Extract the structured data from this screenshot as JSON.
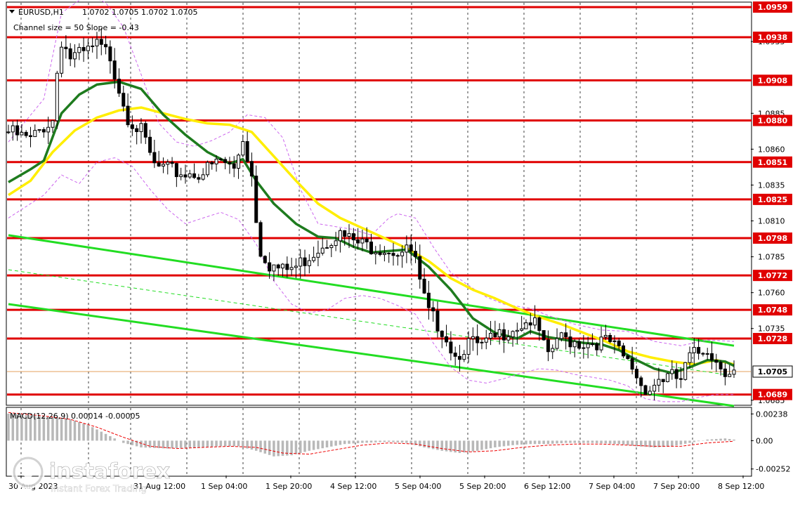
{
  "chart_data": {
    "type": "candlestick",
    "symbol": "EURUSD,H1",
    "ohlc_label": "1.0702 1.0705 1.0702 1.0705",
    "channel_label": "Channel size = 50 Slope = -0.43",
    "ylim": [
      1.0682,
      1.0962
    ],
    "price_ticks": [
      "1.0935",
      "1.0885",
      "1.0860",
      "1.0835",
      "1.0810",
      "1.0785",
      "1.0760",
      "1.0735",
      "1.0685"
    ],
    "price_tick_values": [
      1.0935,
      1.0885,
      1.086,
      1.0835,
      1.081,
      1.0785,
      1.076,
      1.0735,
      1.0685
    ],
    "horizontal_levels": [
      {
        "label": "1.0959",
        "value": 1.0959
      },
      {
        "label": "1.0938",
        "value": 1.0938
      },
      {
        "label": "1.0908",
        "value": 1.0908
      },
      {
        "label": "1.0880",
        "value": 1.088
      },
      {
        "label": "1.0851",
        "value": 1.0851
      },
      {
        "label": "1.0825",
        "value": 1.0825
      },
      {
        "label": "1.0798",
        "value": 1.0798
      },
      {
        "label": "1.0772",
        "value": 1.0772
      },
      {
        "label": "1.0748",
        "value": 1.0748
      },
      {
        "label": "1.0728",
        "value": 1.0728
      },
      {
        "label": "1.0689",
        "value": 1.0689
      }
    ],
    "current_price": {
      "label": "1.0705",
      "value": 1.0705
    },
    "time_labels": [
      "30 Aug 2023",
      "31 Aug 12:00",
      "1 Sep 04:00",
      "1 Sep 20:00",
      "4 Sep 12:00",
      "5 Sep 04:00",
      "5 Sep 20:00",
      "6 Sep 12:00",
      "7 Sep 04:00",
      "7 Sep 20:00",
      "8 Sep 12:00"
    ],
    "bars_total": 165,
    "close_path": [
      [
        0,
        1.0872
      ],
      [
        5,
        1.0866
      ],
      [
        8,
        1.0876
      ],
      [
        10,
        1.088
      ],
      [
        11,
        1.0914
      ],
      [
        12,
        1.0936
      ],
      [
        14,
        1.0924
      ],
      [
        17,
        1.0926
      ],
      [
        20,
        1.0932
      ],
      [
        23,
        1.0925
      ],
      [
        25,
        1.0903
      ],
      [
        27,
        1.0883
      ],
      [
        30,
        1.0872
      ],
      [
        33,
        1.0848
      ],
      [
        36,
        1.0845
      ],
      [
        40,
        1.0843
      ],
      [
        44,
        1.0844
      ],
      [
        48,
        1.0852
      ],
      [
        51,
        1.0846
      ],
      [
        53,
        1.0868
      ],
      [
        55,
        1.0842
      ],
      [
        56,
        1.0812
      ],
      [
        57,
        1.079
      ],
      [
        59,
        1.078
      ],
      [
        62,
        1.0775
      ],
      [
        65,
        1.0778
      ],
      [
        68,
        1.0786
      ],
      [
        71,
        1.0794
      ],
      [
        74,
        1.0801
      ],
      [
        77,
        1.0797
      ],
      [
        80,
        1.0793
      ],
      [
        84,
        1.0792
      ],
      [
        88,
        1.0789
      ],
      [
        91,
        1.0788
      ],
      [
        92,
        1.0782
      ],
      [
        93,
        1.0765
      ],
      [
        95,
        1.0745
      ],
      [
        98,
        1.0735
      ],
      [
        101,
        1.0716
      ],
      [
        104,
        1.0725
      ],
      [
        107,
        1.0722
      ],
      [
        110,
        1.0728
      ],
      [
        113,
        1.0735
      ],
      [
        116,
        1.0738
      ],
      [
        118,
        1.0741
      ],
      [
        120,
        1.0732
      ],
      [
        122,
        1.0713
      ],
      [
        124,
        1.0728
      ],
      [
        127,
        1.0727
      ],
      [
        130,
        1.0725
      ],
      [
        133,
        1.0726
      ],
      [
        136,
        1.0725
      ],
      [
        138,
        1.0718
      ],
      [
        141,
        1.0708
      ],
      [
        143,
        1.0696
      ],
      [
        145,
        1.0693
      ],
      [
        147,
        1.07
      ],
      [
        150,
        1.0701
      ],
      [
        152,
        1.0699
      ],
      [
        154,
        1.0715
      ],
      [
        156,
        1.0718
      ],
      [
        158,
        1.0722
      ],
      [
        160,
        1.0712
      ],
      [
        162,
        1.0707
      ],
      [
        164,
        1.0705
      ]
    ],
    "ma_slow_yellow": [
      [
        0,
        1.0828
      ],
      [
        5,
        1.0838
      ],
      [
        10,
        1.0858
      ],
      [
        15,
        1.0873
      ],
      [
        20,
        1.0882
      ],
      [
        25,
        1.0887
      ],
      [
        30,
        1.0889
      ],
      [
        35,
        1.0885
      ],
      [
        40,
        1.0881
      ],
      [
        45,
        1.0878
      ],
      [
        50,
        1.0877
      ],
      [
        55,
        1.0872
      ],
      [
        60,
        1.0855
      ],
      [
        65,
        1.0838
      ],
      [
        70,
        1.0822
      ],
      [
        75,
        1.0812
      ],
      [
        80,
        1.0805
      ],
      [
        85,
        1.0798
      ],
      [
        90,
        1.0791
      ],
      [
        95,
        1.0782
      ],
      [
        100,
        1.077
      ],
      [
        105,
        1.0762
      ],
      [
        110,
        1.0756
      ],
      [
        115,
        1.0749
      ],
      [
        120,
        1.0743
      ],
      [
        125,
        1.0738
      ],
      [
        130,
        1.0732
      ],
      [
        135,
        1.0726
      ],
      [
        140,
        1.0719
      ],
      [
        145,
        1.0715
      ],
      [
        150,
        1.0712
      ],
      [
        155,
        1.071
      ],
      [
        160,
        1.0713
      ],
      [
        164,
        1.071
      ]
    ],
    "ma_fast_green": [
      [
        0,
        1.0837
      ],
      [
        5,
        1.0846
      ],
      [
        8,
        1.0852
      ],
      [
        12,
        1.0885
      ],
      [
        16,
        1.0898
      ],
      [
        20,
        1.0905
      ],
      [
        25,
        1.0907
      ],
      [
        30,
        1.0902
      ],
      [
        35,
        1.0884
      ],
      [
        40,
        1.087
      ],
      [
        45,
        1.0858
      ],
      [
        50,
        1.085
      ],
      [
        53,
        1.0853
      ],
      [
        56,
        1.0838
      ],
      [
        60,
        1.0822
      ],
      [
        65,
        1.0808
      ],
      [
        70,
        1.0799
      ],
      [
        74,
        1.0798
      ],
      [
        78,
        1.0792
      ],
      [
        82,
        1.0788
      ],
      [
        86,
        1.0789
      ],
      [
        90,
        1.079
      ],
      [
        95,
        1.0778
      ],
      [
        100,
        1.0762
      ],
      [
        105,
        1.0742
      ],
      [
        110,
        1.0732
      ],
      [
        115,
        1.0728
      ],
      [
        118,
        1.0733
      ],
      [
        122,
        1.0729
      ],
      [
        126,
        1.0727
      ],
      [
        130,
        1.0725
      ],
      [
        134,
        1.0724
      ],
      [
        138,
        1.072
      ],
      [
        142,
        1.0713
      ],
      [
        146,
        1.0707
      ],
      [
        150,
        1.0704
      ],
      [
        154,
        1.0708
      ],
      [
        158,
        1.0713
      ],
      [
        162,
        1.0712
      ],
      [
        164,
        1.0709
      ]
    ],
    "bollinger_upper": [
      [
        0,
        1.0865
      ],
      [
        8,
        1.0895
      ],
      [
        12,
        1.0955
      ],
      [
        18,
        1.0968
      ],
      [
        22,
        1.0962
      ],
      [
        26,
        1.0945
      ],
      [
        30,
        1.0912
      ],
      [
        34,
        1.0878
      ],
      [
        38,
        1.0865
      ],
      [
        42,
        1.0862
      ],
      [
        46,
        1.0866
      ],
      [
        50,
        1.0872
      ],
      [
        54,
        1.0884
      ],
      [
        58,
        1.0882
      ],
      [
        62,
        1.0868
      ],
      [
        66,
        1.0832
      ],
      [
        70,
        1.0808
      ],
      [
        74,
        1.0806
      ],
      [
        78,
        1.0804
      ],
      [
        82,
        1.08
      ],
      [
        86,
        1.0812
      ],
      [
        88,
        1.0815
      ],
      [
        92,
        1.0812
      ],
      [
        96,
        1.0792
      ],
      [
        100,
        1.0774
      ],
      [
        104,
        1.0765
      ],
      [
        108,
        1.0757
      ],
      [
        112,
        1.0752
      ],
      [
        118,
        1.0749
      ],
      [
        122,
        1.0744
      ],
      [
        128,
        1.0738
      ],
      [
        134,
        1.0734
      ],
      [
        140,
        1.0733
      ],
      [
        146,
        1.0726
      ],
      [
        152,
        1.0723
      ],
      [
        158,
        1.0727
      ],
      [
        164,
        1.0726
      ]
    ],
    "bollinger_lower": [
      [
        0,
        1.0812
      ],
      [
        8,
        1.0828
      ],
      [
        12,
        1.0842
      ],
      [
        16,
        1.0836
      ],
      [
        20,
        1.0851
      ],
      [
        24,
        1.0854
      ],
      [
        28,
        1.0848
      ],
      [
        32,
        1.0832
      ],
      [
        36,
        1.0818
      ],
      [
        40,
        1.0808
      ],
      [
        44,
        1.0812
      ],
      [
        48,
        1.0816
      ],
      [
        52,
        1.0811
      ],
      [
        56,
        1.0794
      ],
      [
        60,
        1.0768
      ],
      [
        64,
        1.0752
      ],
      [
        68,
        1.0746
      ],
      [
        72,
        1.0748
      ],
      [
        76,
        1.0756
      ],
      [
        80,
        1.0758
      ],
      [
        84,
        1.0756
      ],
      [
        88,
        1.0751
      ],
      [
        92,
        1.0745
      ],
      [
        96,
        1.0725
      ],
      [
        100,
        1.0708
      ],
      [
        104,
        1.0699
      ],
      [
        108,
        1.0697
      ],
      [
        112,
        1.07
      ],
      [
        116,
        1.0704
      ],
      [
        120,
        1.0707
      ],
      [
        124,
        1.0706
      ],
      [
        128,
        1.0703
      ],
      [
        132,
        1.0701
      ],
      [
        136,
        1.0699
      ],
      [
        140,
        1.0695
      ],
      [
        144,
        1.0686
      ],
      [
        148,
        1.0684
      ],
      [
        152,
        1.0684
      ],
      [
        156,
        1.0687
      ],
      [
        160,
        1.0689
      ],
      [
        164,
        1.0689
      ]
    ],
    "channel_upper_line": [
      [
        0,
        1.08
      ],
      [
        164,
        1.0723
      ]
    ],
    "channel_lower_line": [
      [
        0,
        1.0752
      ],
      [
        164,
        1.0681
      ]
    ],
    "channel_mid_line": [
      [
        0,
        1.0776
      ],
      [
        164,
        1.0702
      ]
    ],
    "macd": {
      "label": "MACD(12,26,9) 0.00014 -0.00005",
      "ylim": [
        -0.0031,
        0.0029
      ],
      "ticks": [
        "0.00238",
        "0.00",
        "-0.00252"
      ],
      "tick_values": [
        0.00238,
        0.0,
        -0.00252
      ],
      "histogram": [
        [
          0,
          0.0024
        ],
        [
          6,
          0.0022
        ],
        [
          10,
          0.0021
        ],
        [
          14,
          0.0019
        ],
        [
          18,
          0.0014
        ],
        [
          22,
          0.0006
        ],
        [
          26,
          -0.0002
        ],
        [
          30,
          -0.0006
        ],
        [
          36,
          -0.0007
        ],
        [
          42,
          -0.0006
        ],
        [
          48,
          -0.0005
        ],
        [
          52,
          -0.0005
        ],
        [
          56,
          -0.0009
        ],
        [
          60,
          -0.0014
        ],
        [
          64,
          -0.0013
        ],
        [
          68,
          -0.0009
        ],
        [
          72,
          -0.0006
        ],
        [
          76,
          -0.0003
        ],
        [
          80,
          -0.0002
        ],
        [
          86,
          -0.0001
        ],
        [
          90,
          -0.0002
        ],
        [
          94,
          -0.0006
        ],
        [
          98,
          -0.0009
        ],
        [
          102,
          -0.0011
        ],
        [
          106,
          -0.0009
        ],
        [
          110,
          -0.0006
        ],
        [
          114,
          -0.0004
        ],
        [
          118,
          -0.0003
        ],
        [
          122,
          -0.0003
        ],
        [
          126,
          -0.0002
        ],
        [
          132,
          -0.0002
        ],
        [
          138,
          -0.0003
        ],
        [
          142,
          -0.0005
        ],
        [
          146,
          -0.0006
        ],
        [
          150,
          -0.0005
        ],
        [
          154,
          -0.0002
        ],
        [
          158,
          0.0001
        ],
        [
          162,
          0.0002
        ],
        [
          164,
          0.0001
        ]
      ],
      "signal": [
        [
          0,
          0.0025
        ],
        [
          8,
          0.0022
        ],
        [
          14,
          0.0019
        ],
        [
          20,
          0.0012
        ],
        [
          26,
          0.0003
        ],
        [
          32,
          -0.0005
        ],
        [
          38,
          -0.0007
        ],
        [
          44,
          -0.0006
        ],
        [
          50,
          -0.0005
        ],
        [
          56,
          -0.0006
        ],
        [
          62,
          -0.0011
        ],
        [
          68,
          -0.0012
        ],
        [
          74,
          -0.0008
        ],
        [
          80,
          -0.0004
        ],
        [
          86,
          -0.0002
        ],
        [
          92,
          -0.0003
        ],
        [
          98,
          -0.0007
        ],
        [
          104,
          -0.001
        ],
        [
          110,
          -0.0009
        ],
        [
          116,
          -0.0006
        ],
        [
          122,
          -0.0004
        ],
        [
          128,
          -0.0003
        ],
        [
          134,
          -0.0003
        ],
        [
          140,
          -0.0004
        ],
        [
          146,
          -0.0005
        ],
        [
          152,
          -0.0005
        ],
        [
          158,
          -0.0002
        ],
        [
          164,
          -5e-05
        ]
      ]
    }
  },
  "watermark": {
    "brand": "instaforex",
    "tagline": "Instant Forex Trading"
  },
  "colors": {
    "background": "#ffffff",
    "level_line": "#e00000",
    "level_label_bg": "#e00000",
    "ma_fast": "#1e7b1e",
    "ma_slow": "#ffee00",
    "channel": "#22dd22",
    "bollinger": "#cc66ee",
    "candle": "#000000",
    "macd_hist": "#b8b8b8",
    "macd_signal": "#ee0000",
    "grid": "#000000"
  }
}
